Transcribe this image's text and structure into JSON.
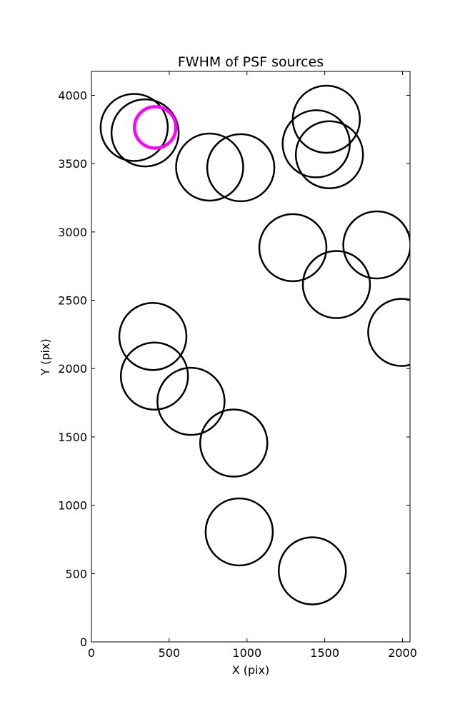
{
  "chart_data": {
    "type": "scatter",
    "title": "FWHM of PSF sources",
    "xlabel": "X (pix)",
    "ylabel": "Y (pix)",
    "xlim": [
      0,
      2048
    ],
    "ylim": [
      0,
      4175
    ],
    "xticks": [
      0,
      500,
      1000,
      1500,
      2000
    ],
    "yticks": [
      0,
      500,
      1000,
      1500,
      2000,
      2500,
      3000,
      3500,
      4000
    ],
    "grid": false,
    "marker": "open-circle",
    "series": [
      {
        "color": "#000000",
        "points": [
          {
            "x": 275,
            "y": 3765
          },
          {
            "x": 345,
            "y": 3725
          },
          {
            "x": 760,
            "y": 3475
          },
          {
            "x": 960,
            "y": 3470
          },
          {
            "x": 1510,
            "y": 3825
          },
          {
            "x": 1445,
            "y": 3645
          },
          {
            "x": 1530,
            "y": 3565
          },
          {
            "x": 1295,
            "y": 2885
          },
          {
            "x": 1835,
            "y": 2905
          },
          {
            "x": 1575,
            "y": 2615
          },
          {
            "x": 1995,
            "y": 2265
          },
          {
            "x": 395,
            "y": 2235
          },
          {
            "x": 405,
            "y": 1945
          },
          {
            "x": 640,
            "y": 1760
          },
          {
            "x": 915,
            "y": 1455
          },
          {
            "x": 950,
            "y": 805
          },
          {
            "x": 1420,
            "y": 520
          }
        ]
      },
      {
        "color": "#ff00ff",
        "points": [
          {
            "x": 410,
            "y": 3765
          }
        ]
      }
    ]
  }
}
